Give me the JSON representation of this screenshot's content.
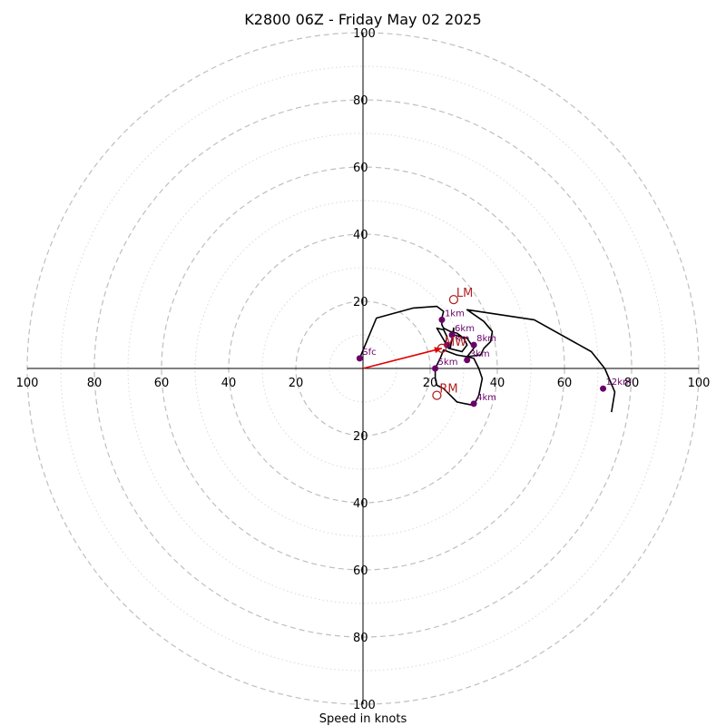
{
  "chart_data": {
    "type": "hodograph",
    "title": "K2800 06Z - Friday May 02 2025",
    "xlabel": "Speed in knots",
    "range": [
      -100,
      100
    ],
    "ring_major_step": 20,
    "ring_minor_step": 10,
    "ring_major_color": "#bfbfbf",
    "ring_minor_color": "#d9d9d9",
    "x_tick_labels": [
      "100",
      "80",
      "60",
      "40",
      "20",
      "20",
      "40",
      "60",
      "80",
      "100"
    ],
    "x_tick_values": [
      -100,
      -80,
      -60,
      -40,
      -20,
      20,
      40,
      60,
      80,
      100
    ],
    "y_tick_labels_top": [
      "20",
      "40",
      "60",
      "80",
      "100"
    ],
    "y_tick_values_top": [
      20,
      40,
      60,
      80,
      100
    ],
    "y_tick_labels_bottom": [
      "20",
      "40",
      "60",
      "80",
      "100"
    ],
    "y_tick_values_bottom": [
      -20,
      -40,
      -60,
      -80,
      -100
    ],
    "line_color": "#000000",
    "marker_color": "#6b006b",
    "motion_color": "#b22222",
    "vector_color": "#e00000",
    "hodograph_trace": [
      [
        -1,
        3
      ],
      [
        4,
        15
      ],
      [
        15,
        18
      ],
      [
        22,
        18.5
      ],
      [
        24,
        17
      ],
      [
        23.5,
        15
      ],
      [
        23.5,
        13
      ],
      [
        24,
        12
      ],
      [
        26,
        11
      ],
      [
        28,
        10.5
      ],
      [
        30,
        9
      ],
      [
        31,
        7
      ],
      [
        29.5,
        5
      ],
      [
        25.5,
        6
      ],
      [
        22,
        12
      ],
      [
        24,
        11.5
      ],
      [
        25,
        9.5
      ],
      [
        24.5,
        7
      ],
      [
        26,
        6
      ],
      [
        27,
        12
      ],
      [
        27,
        10
      ],
      [
        31,
        9
      ],
      [
        33,
        6
      ],
      [
        31,
        3.5
      ],
      [
        28,
        4
      ],
      [
        24,
        5.5
      ],
      [
        23,
        3
      ],
      [
        21.5,
        0
      ],
      [
        21.5,
        -3
      ],
      [
        22,
        -5
      ],
      [
        24,
        -6
      ],
      [
        26,
        -8
      ],
      [
        28,
        -10
      ],
      [
        33,
        -11
      ],
      [
        34.5,
        -8
      ],
      [
        35.5,
        -3
      ],
      [
        34.5,
        0
      ],
      [
        33,
        3
      ],
      [
        31,
        3.5
      ],
      [
        35,
        4
      ],
      [
        36,
        6
      ],
      [
        38,
        8
      ],
      [
        38.5,
        11
      ],
      [
        36,
        14
      ],
      [
        31,
        17.5
      ],
      [
        51,
        14.5
      ],
      [
        68,
        5
      ],
      [
        72,
        0
      ],
      [
        75,
        -7
      ],
      [
        74,
        -13
      ]
    ],
    "height_points": [
      {
        "label": "Sfc",
        "u": -1,
        "v": 3
      },
      {
        "label": "1km",
        "u": 23.5,
        "v": 14.5
      },
      {
        "label": "3km",
        "u": 31,
        "v": 2.5
      },
      {
        "label": "4km",
        "u": 33,
        "v": -10.5
      },
      {
        "label": "5km",
        "u": 21.5,
        "v": 0
      },
      {
        "label": "6km",
        "u": 26.5,
        "v": 10
      },
      {
        "label": "7km",
        "u": 25,
        "v": 7
      },
      {
        "label": "8km",
        "u": 33,
        "v": 7
      },
      {
        "label": "12km",
        "u": 71.5,
        "v": -6
      }
    ],
    "storm_motions": [
      {
        "label": "LM",
        "u": 27,
        "v": 20.5
      },
      {
        "label": "RM",
        "u": 22,
        "v": -8
      },
      {
        "label": "MW",
        "u": 23.5,
        "v": 6
      }
    ],
    "mean_wind_vector": {
      "u": 23.5,
      "v": 6
    }
  }
}
